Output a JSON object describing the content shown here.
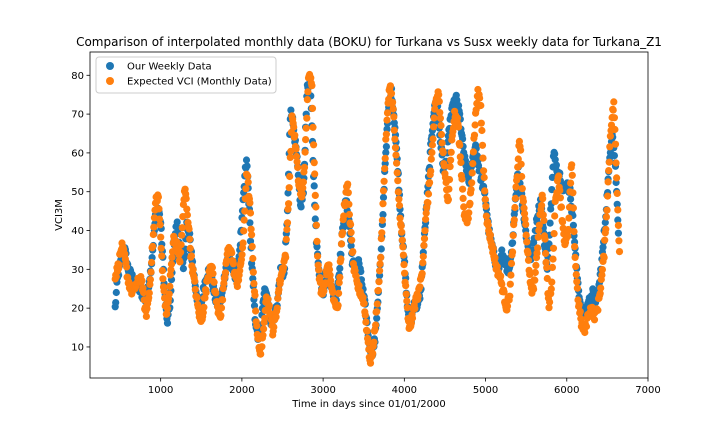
{
  "chart_data": {
    "type": "scatter",
    "title": "Comparison of interpolated monthly data (BOKU) for Turkana vs Susx weekly data for Turkana_Z1",
    "xlabel": "Time in days since 01/01/2000",
    "ylabel": "VCI3M",
    "xlim": [
      130,
      7000
    ],
    "ylim": [
      2,
      86
    ],
    "xticks": [
      1000,
      2000,
      3000,
      4000,
      5000,
      6000,
      7000
    ],
    "yticks": [
      10,
      20,
      30,
      40,
      50,
      60,
      70,
      80
    ],
    "grid": false,
    "legend_position": "top-left",
    "colors": {
      "weekly": "#1f77b4",
      "monthly": "#ff7f0e"
    },
    "series": [
      {
        "name": "Our Weekly Data",
        "marker": "circle",
        "color": "#1f77b4",
        "anchors": [
          [
            440,
            20
          ],
          [
            470,
            28
          ],
          [
            520,
            33
          ],
          [
            560,
            35
          ],
          [
            600,
            30
          ],
          [
            650,
            28
          ],
          [
            700,
            26
          ],
          [
            760,
            24
          ],
          [
            820,
            22
          ],
          [
            880,
            30
          ],
          [
            940,
            44
          ],
          [
            970,
            46
          ],
          [
            1000,
            42
          ],
          [
            1040,
            28
          ],
          [
            1080,
            16
          ],
          [
            1120,
            22
          ],
          [
            1160,
            36
          ],
          [
            1200,
            42
          ],
          [
            1240,
            34
          ],
          [
            1280,
            30
          ],
          [
            1320,
            42
          ],
          [
            1360,
            38
          ],
          [
            1400,
            30
          ],
          [
            1440,
            24
          ],
          [
            1480,
            18
          ],
          [
            1520,
            24
          ],
          [
            1560,
            28
          ],
          [
            1600,
            30
          ],
          [
            1640,
            26
          ],
          [
            1680,
            22
          ],
          [
            1720,
            20
          ],
          [
            1760,
            24
          ],
          [
            1800,
            30
          ],
          [
            1840,
            34
          ],
          [
            1880,
            30
          ],
          [
            1920,
            28
          ],
          [
            1960,
            32
          ],
          [
            2000,
            42
          ],
          [
            2040,
            55
          ],
          [
            2060,
            58
          ],
          [
            2080,
            50
          ],
          [
            2120,
            32
          ],
          [
            2160,
            18
          ],
          [
            2200,
            12
          ],
          [
            2240,
            16
          ],
          [
            2280,
            26
          ],
          [
            2320,
            22
          ],
          [
            2360,
            16
          ],
          [
            2400,
            18
          ],
          [
            2440,
            22
          ],
          [
            2480,
            30
          ],
          [
            2520,
            28
          ],
          [
            2560,
            44
          ],
          [
            2600,
            72
          ],
          [
            2640,
            66
          ],
          [
            2680,
            58
          ],
          [
            2720,
            46
          ],
          [
            2760,
            50
          ],
          [
            2800,
            76
          ],
          [
            2840,
            79
          ],
          [
            2880,
            56
          ],
          [
            2920,
            36
          ],
          [
            2960,
            28
          ],
          [
            3000,
            24
          ],
          [
            3040,
            30
          ],
          [
            3080,
            28
          ],
          [
            3120,
            24
          ],
          [
            3160,
            22
          ],
          [
            3200,
            30
          ],
          [
            3240,
            40
          ],
          [
            3280,
            48
          ],
          [
            3320,
            42
          ],
          [
            3360,
            32
          ],
          [
            3400,
            30
          ],
          [
            3440,
            32
          ],
          [
            3480,
            26
          ],
          [
            3520,
            20
          ],
          [
            3560,
            12
          ],
          [
            3600,
            8
          ],
          [
            3640,
            12
          ],
          [
            3680,
            24
          ],
          [
            3720,
            36
          ],
          [
            3760,
            56
          ],
          [
            3800,
            70
          ],
          [
            3840,
            76
          ],
          [
            3880,
            68
          ],
          [
            3920,
            56
          ],
          [
            3960,
            42
          ],
          [
            4000,
            32
          ],
          [
            4040,
            20
          ],
          [
            4080,
            16
          ],
          [
            4120,
            22
          ],
          [
            4160,
            20
          ],
          [
            4200,
            24
          ],
          [
            4240,
            36
          ],
          [
            4280,
            48
          ],
          [
            4320,
            60
          ],
          [
            4360,
            70
          ],
          [
            4400,
            74
          ],
          [
            4440,
            64
          ],
          [
            4480,
            56
          ],
          [
            4520,
            58
          ],
          [
            4560,
            68
          ],
          [
            4600,
            72
          ],
          [
            4640,
            74
          ],
          [
            4680,
            70
          ],
          [
            4720,
            62
          ],
          [
            4760,
            56
          ],
          [
            4800,
            52
          ],
          [
            4840,
            58
          ],
          [
            4880,
            62
          ],
          [
            4920,
            56
          ],
          [
            4960,
            52
          ],
          [
            5000,
            48
          ],
          [
            5040,
            40
          ],
          [
            5080,
            36
          ],
          [
            5120,
            32
          ],
          [
            5160,
            30
          ],
          [
            5200,
            34
          ],
          [
            5240,
            32
          ],
          [
            5280,
            28
          ],
          [
            5320,
            34
          ],
          [
            5360,
            46
          ],
          [
            5400,
            56
          ],
          [
            5440,
            50
          ],
          [
            5480,
            42
          ],
          [
            5520,
            36
          ],
          [
            5560,
            32
          ],
          [
            5600,
            38
          ],
          [
            5640,
            44
          ],
          [
            5680,
            48
          ],
          [
            5720,
            38
          ],
          [
            5760,
            30
          ],
          [
            5800,
            44
          ],
          [
            5840,
            60
          ],
          [
            5880,
            56
          ],
          [
            5920,
            54
          ],
          [
            5960,
            50
          ],
          [
            6000,
            52
          ],
          [
            6040,
            50
          ],
          [
            6080,
            42
          ],
          [
            6120,
            30
          ],
          [
            6160,
            22
          ],
          [
            6200,
            18
          ],
          [
            6240,
            20
          ],
          [
            6280,
            22
          ],
          [
            6320,
            24
          ],
          [
            6360,
            22
          ],
          [
            6400,
            26
          ],
          [
            6440,
            34
          ],
          [
            6480,
            44
          ],
          [
            6520,
            56
          ],
          [
            6560,
            66
          ],
          [
            6600,
            56
          ],
          [
            6640,
            38
          ]
        ]
      },
      {
        "name": "Expected VCI (Monthly Data)",
        "marker": "circle",
        "color": "#ff7f0e",
        "anchors": [
          [
            440,
            28
          ],
          [
            480,
            31
          ],
          [
            520,
            36
          ],
          [
            560,
            33
          ],
          [
            600,
            27
          ],
          [
            650,
            24
          ],
          [
            700,
            26
          ],
          [
            760,
            28
          ],
          [
            820,
            18
          ],
          [
            860,
            24
          ],
          [
            900,
            36
          ],
          [
            940,
            48
          ],
          [
            970,
            49
          ],
          [
            1000,
            38
          ],
          [
            1040,
            24
          ],
          [
            1080,
            18
          ],
          [
            1120,
            28
          ],
          [
            1160,
            38
          ],
          [
            1200,
            36
          ],
          [
            1240,
            32
          ],
          [
            1280,
            46
          ],
          [
            1300,
            51
          ],
          [
            1340,
            42
          ],
          [
            1380,
            32
          ],
          [
            1420,
            26
          ],
          [
            1460,
            20
          ],
          [
            1500,
            16
          ],
          [
            1540,
            22
          ],
          [
            1580,
            28
          ],
          [
            1620,
            32
          ],
          [
            1660,
            26
          ],
          [
            1700,
            20
          ],
          [
            1740,
            18
          ],
          [
            1780,
            26
          ],
          [
            1820,
            34
          ],
          [
            1860,
            36
          ],
          [
            1900,
            30
          ],
          [
            1940,
            26
          ],
          [
            1980,
            30
          ],
          [
            2020,
            38
          ],
          [
            2060,
            56
          ],
          [
            2100,
            46
          ],
          [
            2140,
            30
          ],
          [
            2180,
            16
          ],
          [
            2220,
            8
          ],
          [
            2260,
            12
          ],
          [
            2300,
            24
          ],
          [
            2340,
            20
          ],
          [
            2380,
            14
          ],
          [
            2420,
            18
          ],
          [
            2460,
            26
          ],
          [
            2500,
            30
          ],
          [
            2540,
            34
          ],
          [
            2580,
            50
          ],
          [
            2620,
            70
          ],
          [
            2660,
            62
          ],
          [
            2700,
            52
          ],
          [
            2740,
            48
          ],
          [
            2780,
            60
          ],
          [
            2820,
            80
          ],
          [
            2860,
            78
          ],
          [
            2900,
            52
          ],
          [
            2940,
            30
          ],
          [
            2980,
            24
          ],
          [
            3020,
            26
          ],
          [
            3060,
            32
          ],
          [
            3100,
            26
          ],
          [
            3140,
            22
          ],
          [
            3180,
            20
          ],
          [
            3220,
            34
          ],
          [
            3260,
            46
          ],
          [
            3300,
            52
          ],
          [
            3340,
            40
          ],
          [
            3380,
            30
          ],
          [
            3420,
            26
          ],
          [
            3460,
            24
          ],
          [
            3500,
            22
          ],
          [
            3540,
            14
          ],
          [
            3580,
            6
          ],
          [
            3620,
            10
          ],
          [
            3660,
            20
          ],
          [
            3700,
            30
          ],
          [
            3740,
            48
          ],
          [
            3780,
            66
          ],
          [
            3820,
            78
          ],
          [
            3860,
            72
          ],
          [
            3900,
            58
          ],
          [
            3940,
            46
          ],
          [
            3980,
            36
          ],
          [
            4020,
            24
          ],
          [
            4060,
            14
          ],
          [
            4100,
            18
          ],
          [
            4140,
            22
          ],
          [
            4180,
            24
          ],
          [
            4220,
            30
          ],
          [
            4260,
            42
          ],
          [
            4300,
            50
          ],
          [
            4340,
            60
          ],
          [
            4380,
            72
          ],
          [
            4420,
            76
          ],
          [
            4460,
            64
          ],
          [
            4500,
            54
          ],
          [
            4540,
            48
          ],
          [
            4580,
            62
          ],
          [
            4620,
            70
          ],
          [
            4660,
            68
          ],
          [
            4700,
            56
          ],
          [
            4740,
            44
          ],
          [
            4780,
            42
          ],
          [
            4820,
            50
          ],
          [
            4860,
            64
          ],
          [
            4900,
            76
          ],
          [
            4940,
            72
          ],
          [
            4980,
            54
          ],
          [
            5020,
            42
          ],
          [
            5060,
            38
          ],
          [
            5100,
            34
          ],
          [
            5140,
            30
          ],
          [
            5180,
            28
          ],
          [
            5220,
            24
          ],
          [
            5260,
            20
          ],
          [
            5300,
            24
          ],
          [
            5340,
            38
          ],
          [
            5380,
            52
          ],
          [
            5420,
            64
          ],
          [
            5460,
            48
          ],
          [
            5500,
            40
          ],
          [
            5540,
            28
          ],
          [
            5580,
            24
          ],
          [
            5620,
            30
          ],
          [
            5660,
            42
          ],
          [
            5700,
            49
          ],
          [
            5740,
            34
          ],
          [
            5780,
            20
          ],
          [
            5820,
            28
          ],
          [
            5860,
            48
          ],
          [
            5900,
            54
          ],
          [
            5940,
            44
          ],
          [
            5980,
            36
          ],
          [
            6020,
            40
          ],
          [
            6060,
            58
          ],
          [
            6100,
            34
          ],
          [
            6140,
            22
          ],
          [
            6180,
            16
          ],
          [
            6220,
            14
          ],
          [
            6260,
            18
          ],
          [
            6300,
            20
          ],
          [
            6340,
            18
          ],
          [
            6380,
            20
          ],
          [
            6420,
            26
          ],
          [
            6460,
            34
          ],
          [
            6500,
            48
          ],
          [
            6540,
            66
          ],
          [
            6580,
            73
          ],
          [
            6620,
            50
          ],
          [
            6650,
            34
          ]
        ]
      }
    ]
  }
}
